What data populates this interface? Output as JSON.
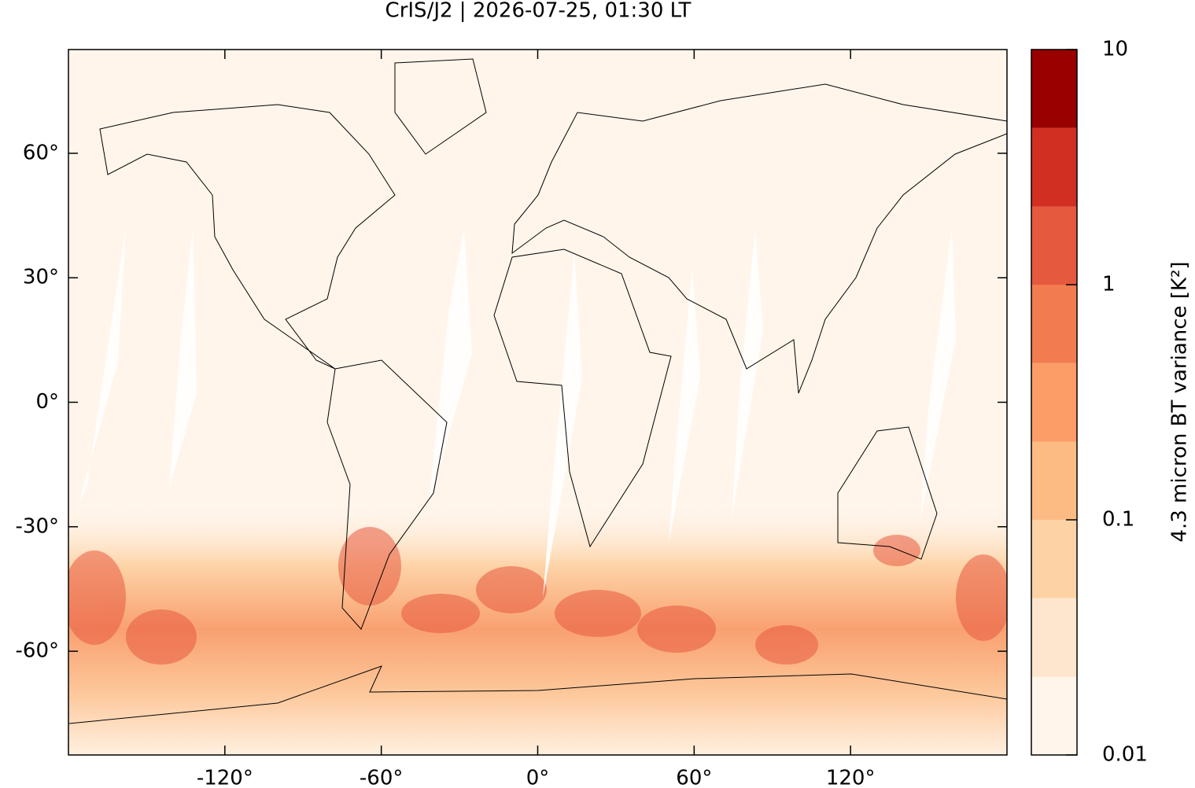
{
  "chart_data": {
    "type": "map",
    "title": "CrIS/J2 | 2026-07-25, 01:30 LT",
    "xlim": [
      -180,
      180
    ],
    "ylim": [
      -85,
      85
    ],
    "xticks": [
      {
        "value": -120,
        "label": "-120°"
      },
      {
        "value": -60,
        "label": "-60°"
      },
      {
        "value": 0,
        "label": "0°"
      },
      {
        "value": 60,
        "label": "60°"
      },
      {
        "value": 120,
        "label": "120°"
      }
    ],
    "yticks": [
      {
        "value": -60,
        "label": "-60°"
      },
      {
        "value": -30,
        "label": "-30°"
      },
      {
        "value": 0,
        "label": "0°"
      },
      {
        "value": 30,
        "label": "30°"
      },
      {
        "value": 60,
        "label": "60°"
      }
    ],
    "colorbar": {
      "label": "4.3 micron BT variance [K²]",
      "scale": "log",
      "lim": [
        0.01,
        10
      ],
      "ticks": [
        0.01,
        0.1,
        1,
        10
      ],
      "levels": [
        0.01,
        0.0215,
        0.0464,
        0.1,
        0.215,
        0.464,
        1,
        2.15,
        4.64,
        10
      ],
      "colors": [
        "#fff5eb",
        "#fee6ce",
        "#fdd3a6",
        "#fdbb84",
        "#fc9c66",
        "#f27b50",
        "#e5593e",
        "#d02f22",
        "#990000"
      ]
    }
  }
}
